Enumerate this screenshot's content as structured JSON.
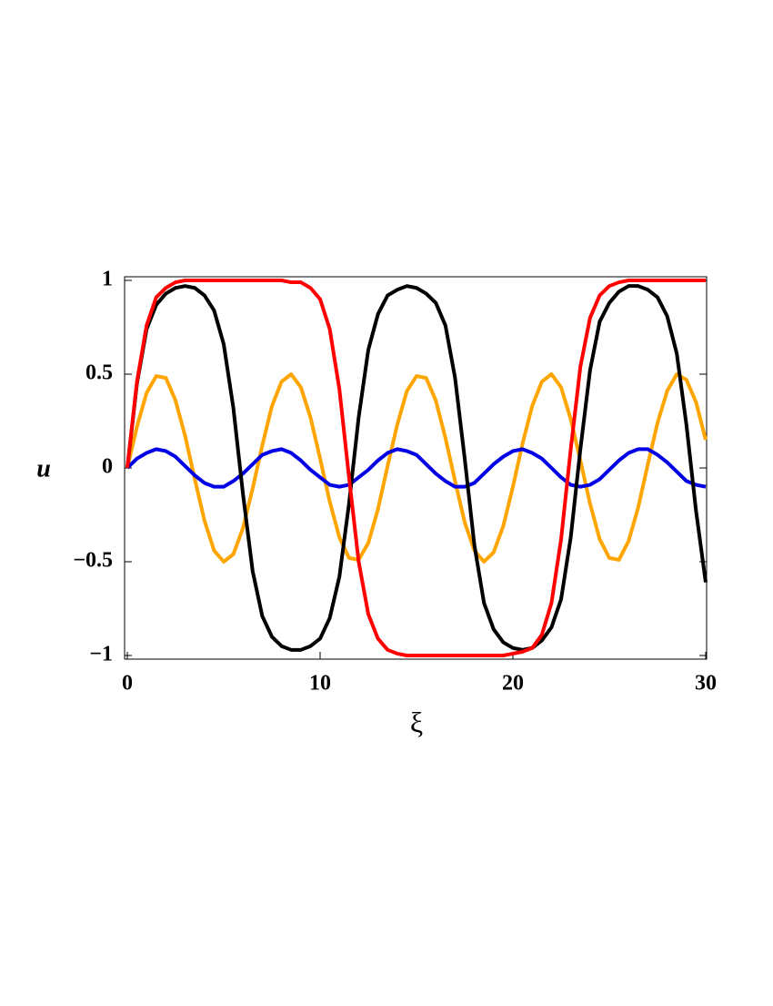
{
  "chart_data": {
    "type": "line",
    "xlabel": "ξ",
    "ylabel": "u",
    "xlim": [
      0,
      30
    ],
    "ylim": [
      -1,
      1
    ],
    "xticks": [
      0,
      10,
      20,
      30
    ],
    "yticks": [
      {
        "value": -1,
        "label": "−1"
      },
      {
        "value": -0.5,
        "label": "−0.5"
      },
      0,
      0.5,
      1
    ],
    "x": [
      0,
      0.5,
      1,
      1.5,
      2,
      2.5,
      3,
      3.5,
      4,
      4.5,
      5,
      5.5,
      6,
      6.5,
      7,
      7.5,
      8,
      8.5,
      9,
      9.5,
      10,
      10.5,
      11,
      11.5,
      12,
      12.5,
      13,
      13.5,
      14,
      14.5,
      15,
      15.5,
      16,
      16.5,
      17,
      17.5,
      18,
      18.5,
      19,
      19.5,
      20,
      20.5,
      21,
      21.5,
      22,
      22.5,
      23,
      23.5,
      24,
      24.5,
      25,
      25.5,
      26,
      26.5,
      27,
      27.5,
      28,
      28.5,
      29,
      29.5,
      30
    ],
    "series": [
      {
        "color": "#ffa500",
        "values": [
          0,
          0.22,
          0.4,
          0.49,
          0.48,
          0.36,
          0.17,
          -0.06,
          -0.28,
          -0.44,
          -0.5,
          -0.46,
          -0.32,
          -0.11,
          0.12,
          0.33,
          0.46,
          0.5,
          0.43,
          0.27,
          0.05,
          -0.18,
          -0.37,
          -0.48,
          -0.49,
          -0.4,
          -0.22,
          0.01,
          0.23,
          0.41,
          0.49,
          0.48,
          0.36,
          0.16,
          -0.07,
          -0.29,
          -0.44,
          -0.5,
          -0.45,
          -0.31,
          -0.1,
          0.13,
          0.33,
          0.46,
          0.5,
          0.43,
          0.26,
          0.04,
          -0.19,
          -0.38,
          -0.48,
          -0.49,
          -0.39,
          -0.21,
          0.02,
          0.24,
          0.41,
          0.5,
          0.47,
          0.35,
          0.15
        ]
      },
      {
        "color": "#0000e6",
        "values": [
          0,
          0.05,
          0.08,
          0.1,
          0.09,
          0.06,
          0.01,
          -0.04,
          -0.08,
          -0.1,
          -0.1,
          -0.07,
          -0.03,
          0.02,
          0.07,
          0.09,
          0.1,
          0.08,
          0.04,
          -0.01,
          -0.05,
          -0.09,
          -0.1,
          -0.09,
          -0.05,
          -0.01,
          0.04,
          0.08,
          0.1,
          0.09,
          0.07,
          0.02,
          -0.03,
          -0.07,
          -0.1,
          -0.1,
          -0.08,
          -0.03,
          0.02,
          0.06,
          0.09,
          0.1,
          0.08,
          0.05,
          0,
          -0.05,
          -0.09,
          -0.1,
          -0.09,
          -0.06,
          -0.01,
          0.04,
          0.08,
          0.1,
          0.1,
          0.07,
          0.03,
          -0.02,
          -0.07,
          -0.09,
          -0.1
        ]
      },
      {
        "color": "#000000",
        "values": [
          0,
          0.45,
          0.74,
          0.87,
          0.93,
          0.96,
          0.97,
          0.96,
          0.92,
          0.84,
          0.66,
          0.32,
          -0.14,
          -0.55,
          -0.79,
          -0.9,
          -0.95,
          -0.97,
          -0.97,
          -0.95,
          -0.91,
          -0.8,
          -0.58,
          -0.19,
          0.27,
          0.63,
          0.82,
          0.92,
          0.95,
          0.97,
          0.96,
          0.93,
          0.88,
          0.76,
          0.48,
          0.05,
          -0.41,
          -0.72,
          -0.86,
          -0.93,
          -0.96,
          -0.97,
          -0.96,
          -0.92,
          -0.85,
          -0.7,
          -0.37,
          0.1,
          0.52,
          0.78,
          0.88,
          0.94,
          0.97,
          0.97,
          0.95,
          0.91,
          0.81,
          0.61,
          0.23,
          -0.23,
          -0.61
        ]
      },
      {
        "color": "#ff0000",
        "values": [
          0,
          0.46,
          0.76,
          0.91,
          0.96,
          0.99,
          1,
          1,
          1,
          1,
          1,
          1,
          1,
          1,
          1,
          1,
          1,
          0.99,
          0.99,
          0.96,
          0.9,
          0.74,
          0.42,
          -0.05,
          -0.5,
          -0.78,
          -0.91,
          -0.97,
          -0.99,
          -1,
          -1,
          -1,
          -1,
          -1,
          -1,
          -1,
          -1,
          -1,
          -1,
          -1,
          -0.99,
          -0.98,
          -0.96,
          -0.89,
          -0.72,
          -0.38,
          0.1,
          0.54,
          0.8,
          0.92,
          0.97,
          0.99,
          1,
          1,
          1,
          1,
          1,
          1,
          1,
          1,
          1
        ]
      }
    ]
  }
}
